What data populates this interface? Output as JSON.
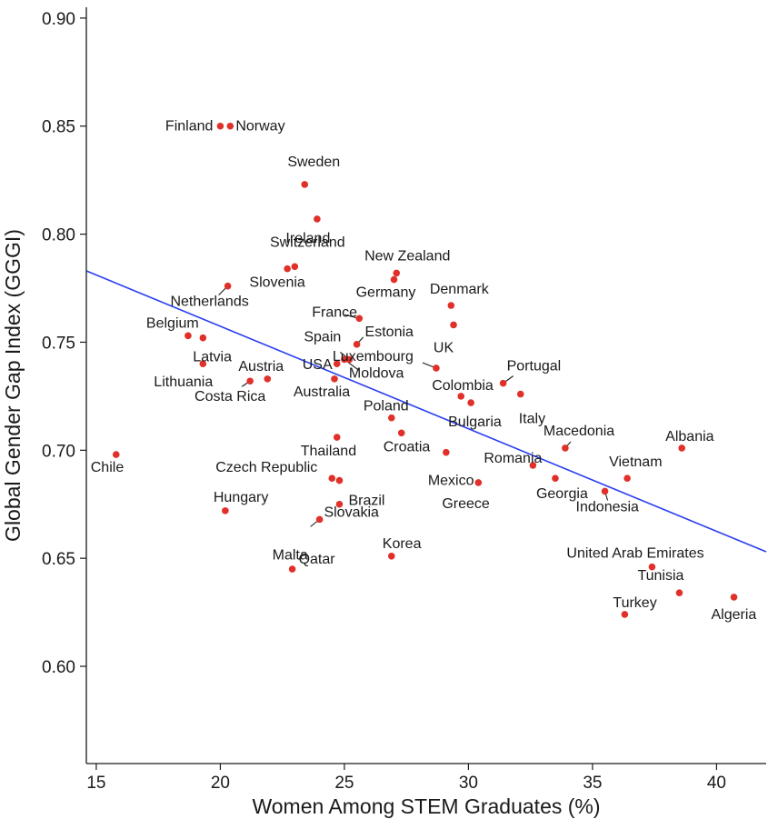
{
  "chart_data": {
    "type": "scatter",
    "xlabel": "Women Among STEM Graduates (%)",
    "ylabel": "Global Gender Gap Index (GGGI)",
    "xlim": [
      14.6,
      42.0
    ],
    "ylim": [
      0.555,
      0.905
    ],
    "xticks": [
      15,
      20,
      25,
      30,
      35,
      40
    ],
    "yticks": [
      0.6,
      0.65,
      0.7,
      0.75,
      0.8,
      0.85,
      0.9
    ],
    "xtick_labels": [
      "15",
      "20",
      "25",
      "30",
      "35",
      "40"
    ],
    "ytick_labels": [
      "0.60",
      "0.65",
      "0.70",
      "0.75",
      "0.80",
      "0.85",
      "0.90"
    ],
    "grid": false,
    "legend": "none",
    "point_color": "#e0302a",
    "trend_color": "#2b3ff0",
    "trendline": {
      "x": [
        14.6,
        42.0
      ],
      "y": [
        0.783,
        0.653
      ]
    },
    "points": [
      {
        "label": "Finland",
        "x": 20.0,
        "y": 0.85
      },
      {
        "label": "Norway",
        "x": 20.4,
        "y": 0.85
      },
      {
        "label": "Sweden",
        "x": 23.4,
        "y": 0.823
      },
      {
        "label": "Ireland",
        "x": 23.9,
        "y": 0.807
      },
      {
        "label": "Switzerland",
        "x": 23.0,
        "y": 0.785
      },
      {
        "label": "Slovenia",
        "x": 22.7,
        "y": 0.784
      },
      {
        "label": "New Zealand",
        "x": 27.1,
        "y": 0.782
      },
      {
        "label": "Germany",
        "x": 27.0,
        "y": 0.779
      },
      {
        "label": "Netherlands",
        "x": 20.3,
        "y": 0.776
      },
      {
        "label": "Denmark",
        "x": 29.3,
        "y": 0.767
      },
      {
        "label": "France",
        "x": 25.6,
        "y": 0.761
      },
      {
        "label": "UK",
        "x": 29.4,
        "y": 0.758
      },
      {
        "label": "Estonia",
        "x": 25.5,
        "y": 0.749
      },
      {
        "label": "Belgium",
        "x": 18.7,
        "y": 0.753
      },
      {
        "label": "Latvia",
        "x": 19.3,
        "y": 0.752
      },
      {
        "label": "Spain",
        "x": 25.2,
        "y": 0.742
      },
      {
        "label": "Moldova",
        "x": 25.0,
        "y": 0.742
      },
      {
        "label": "USA",
        "x": 24.7,
        "y": 0.74
      },
      {
        "label": "Luxembourg",
        "x": 28.7,
        "y": 0.738
      },
      {
        "label": "Lithuania",
        "x": 19.3,
        "y": 0.74
      },
      {
        "label": "Austria",
        "x": 21.9,
        "y": 0.733
      },
      {
        "label": "Costa Rica",
        "x": 21.2,
        "y": 0.732
      },
      {
        "label": "Australia",
        "x": 24.6,
        "y": 0.733
      },
      {
        "label": "Portugal",
        "x": 31.4,
        "y": 0.731
      },
      {
        "label": "Italy",
        "x": 32.1,
        "y": 0.726
      },
      {
        "label": "Colombia",
        "x": 29.7,
        "y": 0.725
      },
      {
        "label": "Bulgaria",
        "x": 30.1,
        "y": 0.722
      },
      {
        "label": "Poland",
        "x": 26.9,
        "y": 0.715
      },
      {
        "label": "Croatia",
        "x": 27.3,
        "y": 0.708
      },
      {
        "label": "Thailand",
        "x": 24.7,
        "y": 0.706
      },
      {
        "label": "Macedonia",
        "x": 33.9,
        "y": 0.701
      },
      {
        "label": "Albania",
        "x": 38.6,
        "y": 0.701
      },
      {
        "label": "Mexico",
        "x": 29.1,
        "y": 0.699
      },
      {
        "label": "Chile",
        "x": 15.8,
        "y": 0.698
      },
      {
        "label": "Romania",
        "x": 32.6,
        "y": 0.693
      },
      {
        "label": "Czech Republic",
        "x": 24.5,
        "y": 0.687
      },
      {
        "label": "Vietnam",
        "x": 36.4,
        "y": 0.687
      },
      {
        "label": "Georgia",
        "x": 33.5,
        "y": 0.687
      },
      {
        "label": "Brazil",
        "x": 24.8,
        "y": 0.686
      },
      {
        "label": "Greece",
        "x": 30.4,
        "y": 0.685
      },
      {
        "label": "Indonesia",
        "x": 35.5,
        "y": 0.681
      },
      {
        "label": "Slovakia",
        "x": 24.8,
        "y": 0.675
      },
      {
        "label": "Hungary",
        "x": 20.2,
        "y": 0.672
      },
      {
        "label": "Malta",
        "x": 24.0,
        "y": 0.668
      },
      {
        "label": "Korea",
        "x": 26.9,
        "y": 0.651
      },
      {
        "label": "United Arab Emirates",
        "x": 37.4,
        "y": 0.646
      },
      {
        "label": "Qatar",
        "x": 22.9,
        "y": 0.645
      },
      {
        "label": "Tunisia",
        "x": 38.5,
        "y": 0.634
      },
      {
        "label": "Algeria",
        "x": 40.7,
        "y": 0.632
      },
      {
        "label": "Turkey",
        "x": 36.3,
        "y": 0.624
      }
    ]
  }
}
